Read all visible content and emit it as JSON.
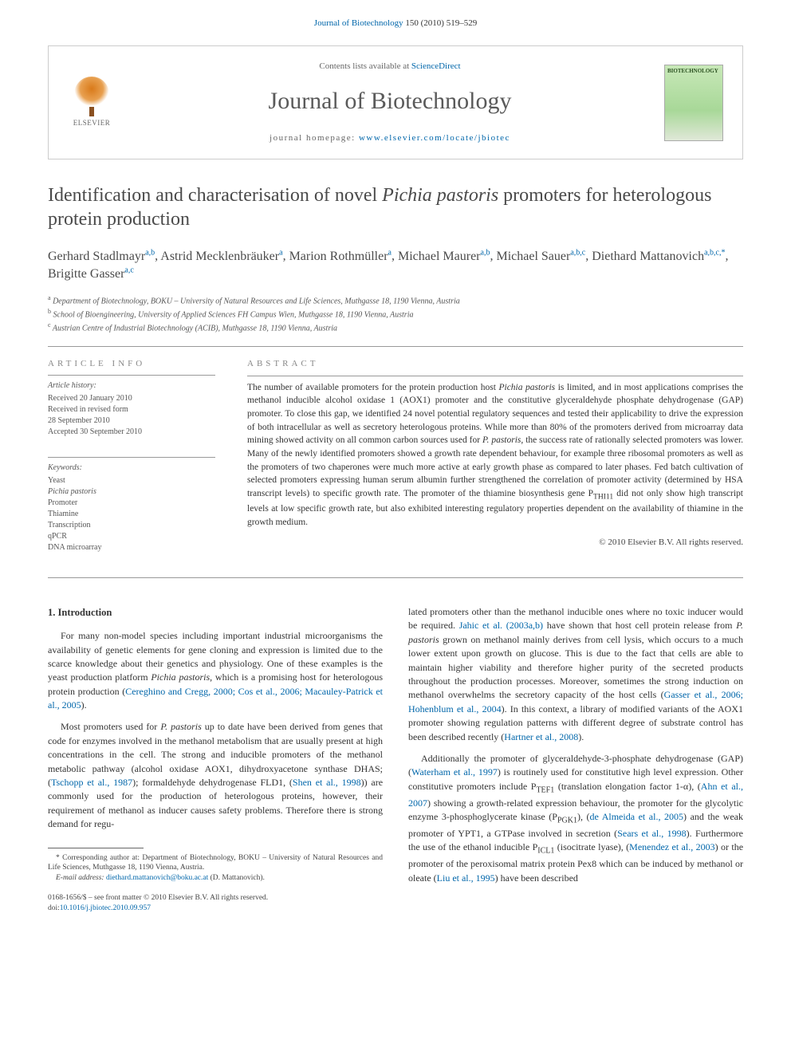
{
  "page_header": {
    "citation_prefix": "Journal of Biotechnology 150 (2010) 519–529",
    "citation_link_text": "Journal of Biotechnology"
  },
  "banner": {
    "elsevier_label": "ELSEVIER",
    "avail_prefix": "Contents lists available at ",
    "avail_link": "ScienceDirect",
    "journal_title": "Journal of Biotechnology",
    "homepage_prefix": "journal homepage: ",
    "homepage_link": "www.elsevier.com/locate/jbiotec",
    "cover_label": "BIOTECHNOLOGY"
  },
  "article": {
    "title_pre": "Identification and characterisation of novel ",
    "title_em": "Pichia pastoris",
    "title_post": " promoters for heterologous protein production",
    "authors": [
      {
        "name": "Gerhard Stadlmayr",
        "sup": "a,b"
      },
      {
        "name": "Astrid Mecklenbräuker",
        "sup": "a"
      },
      {
        "name": "Marion Rothmüller",
        "sup": "a"
      },
      {
        "name": "Michael Maurer",
        "sup": "a,b"
      },
      {
        "name": "Michael Sauer",
        "sup": "a,b,c"
      },
      {
        "name": "Diethard Mattanovich",
        "sup": "a,b,c,*"
      },
      {
        "name": "Brigitte Gasser",
        "sup": "a,c"
      }
    ],
    "affiliations": [
      {
        "sup": "a",
        "text": "Department of Biotechnology, BOKU – University of Natural Resources and Life Sciences, Muthgasse 18, 1190 Vienna, Austria"
      },
      {
        "sup": "b",
        "text": "School of Bioengineering, University of Applied Sciences FH Campus Wien, Muthgasse 18, 1190 Vienna, Austria"
      },
      {
        "sup": "c",
        "text": "Austrian Centre of Industrial Biotechnology (ACIB), Muthgasse 18, 1190 Vienna, Austria"
      }
    ]
  },
  "info": {
    "heading": "article info",
    "history_label": "Article history:",
    "history": [
      "Received 20 January 2010",
      "Received in revised form",
      "28 September 2010",
      "Accepted 30 September 2010"
    ],
    "keywords_label": "Keywords:",
    "keywords": [
      "Yeast",
      "Pichia pastoris",
      "Promoter",
      "Thiamine",
      "Transcription",
      "qPCR",
      "DNA microarray"
    ]
  },
  "abstract": {
    "heading": "abstract",
    "text_1": "The number of available promoters for the protein production host ",
    "text_em1": "Pichia pastoris",
    "text_2": " is limited, and in most applications comprises the methanol inducible alcohol oxidase 1 (AOX1) promoter and the constitutive glyceraldehyde phosphate dehydrogenase (GAP) promoter. To close this gap, we identified 24 novel potential regulatory sequences and tested their applicability to drive the expression of both intracellular as well as secretory heterologous proteins. While more than 80% of the promoters derived from microarray data mining showed activity on all common carbon sources used for ",
    "text_em2": "P. pastoris",
    "text_3": ", the success rate of rationally selected promoters was lower. Many of the newly identified promoters showed a growth rate dependent behaviour, for example three ribosomal promoters as well as the promoters of two chaperones were much more active at early growth phase as compared to later phases. Fed batch cultivation of selected promoters expressing human serum albumin further strengthened the correlation of promoter activity (determined by HSA transcript levels) to specific growth rate. The promoter of the thiamine biosynthesis gene P",
    "text_sub1": "THI11",
    "text_4": " did not only show high transcript levels at low specific growth rate, but also exhibited interesting regulatory properties dependent on the availability of thiamine in the growth medium.",
    "copyright": "© 2010 Elsevier B.V. All rights reserved."
  },
  "body": {
    "section1_heading": "1.  Introduction",
    "left": {
      "p1_a": "For many non-model species including important industrial microorganisms the availability of genetic elements for gene cloning and expression is limited due to the scarce knowledge about their genetics and physiology. One of these examples is the yeast production platform ",
      "p1_em": "Pichia pastoris",
      "p1_b": ", which is a promising host for heterologous protein production (",
      "p1_link": "Cereghino and Cregg, 2000; Cos et al., 2006; Macauley-Patrick et al., 2005",
      "p1_c": ").",
      "p2_a": "Most promoters used for ",
      "p2_em": "P. pastoris",
      "p2_b": " up to date have been derived from genes that code for enzymes involved in the methanol metabolism that are usually present at high concentrations in the cell. The strong and inducible promoters of the methanol metabolic pathway (alcohol oxidase AOX1, dihydroxyacetone synthase DHAS; (",
      "p2_link1": "Tschopp et al., 1987",
      "p2_c": "); formaldehyde dehydrogenase FLD1, (",
      "p2_link2": "Shen et al., 1998",
      "p2_d": ")) are commonly used for the production of heterologous proteins, however, their requirement of methanol as inducer causes safety problems. Therefore there is strong demand for regu-"
    },
    "right": {
      "p1_a": "lated promoters other than the methanol inducible ones where no toxic inducer would be required. ",
      "p1_link1": "Jahic et al. (2003a,b)",
      "p1_b": " have shown that host cell protein release from ",
      "p1_em1": "P. pastoris",
      "p1_c": " grown on methanol mainly derives from cell lysis, which occurs to a much lower extent upon growth on glucose. This is due to the fact that cells are able to maintain higher viability and therefore higher purity of the secreted products throughout the production processes. Moreover, sometimes the strong induction on methanol overwhelms the secretory capacity of the host cells (",
      "p1_link2": "Gasser et al., 2006; Hohenblum et al., 2004",
      "p1_d": "). In this context, a library of modified variants of the AOX1 promoter showing regulation patterns with different degree of substrate control has been described recently (",
      "p1_link3": "Hartner et al., 2008",
      "p1_e": ").",
      "p2_a": "Additionally the promoter of glyceraldehyde-3-phosphate dehydrogenase (GAP) (",
      "p2_link1": "Waterham et al., 1997",
      "p2_b": ") is routinely used for constitutive high level expression. Other constitutive promoters include P",
      "p2_sub1": "TEF1",
      "p2_c": " (translation elongation factor 1-α), (",
      "p2_link2": "Ahn et al., 2007",
      "p2_d": ") showing a growth-related expression behaviour, the promoter for the glycolytic enzyme 3-phosphoglycerate kinase (P",
      "p2_sub2": "PGK1",
      "p2_e": "), (",
      "p2_link3": "de Almeida et al., 2005",
      "p2_f": ") and the weak promoter of YPT1, a GTPase involved in secretion (",
      "p2_link4": "Sears et al., 1998",
      "p2_g": "). Furthermore the use of the ethanol inducible P",
      "p2_sub3": "ICL1",
      "p2_h": " (isocitrate lyase), (",
      "p2_link5": "Menendez et al., 2003",
      "p2_i": ") or the promoter of the peroxisomal matrix protein Pex8 which can be induced by methanol or oleate (",
      "p2_link6": "Liu et al., 1995",
      "p2_j": ") have been described"
    },
    "footnote_corr_a": "* Corresponding author at: Department of Biotechnology, BOKU – University of Natural Resources and Life Sciences, Muthgasse 18, 1190 Vienna, Austria.",
    "footnote_email_label": "E-mail address:",
    "footnote_email": "diethard.mattanovich@boku.ac.at",
    "footnote_email_post": " (D. Mattanovich).",
    "footer_issn": "0168-1656/$ – see front matter © 2010 Elsevier B.V. All rights reserved.",
    "footer_doi_label": "doi:",
    "footer_doi": "10.1016/j.jbiotec.2010.09.957"
  },
  "colors": {
    "link": "#0066aa",
    "text": "#333333",
    "heading_gray": "#888888",
    "rule": "#999999"
  }
}
